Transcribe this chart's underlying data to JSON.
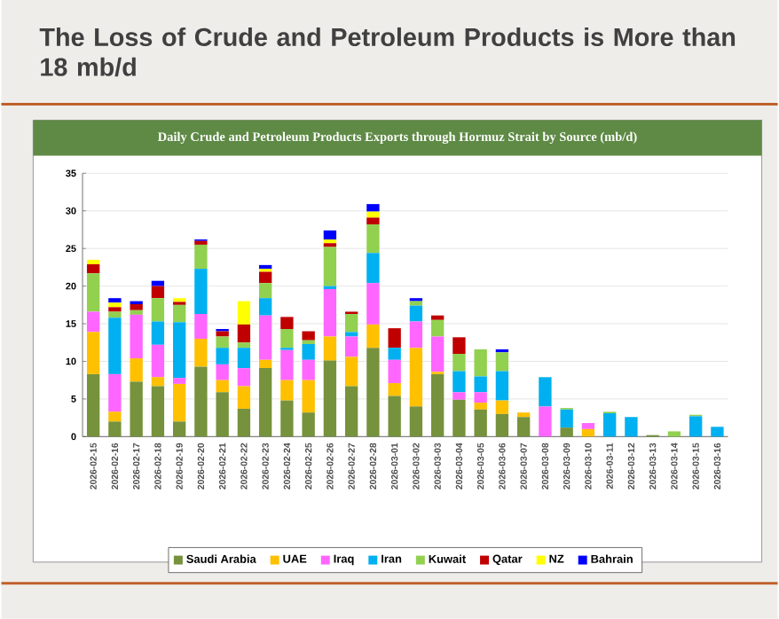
{
  "chart_data": {
    "type": "bar",
    "stacked": true,
    "title": "The Loss of Crude and Petroleum Products is More than 18 mb/d",
    "subtitle": "Daily Crude and Petroleum Products Exports through Hormuz Strait by Source (mb/d)",
    "categories": [
      "2026-02-15",
      "2026-02-16",
      "2026-02-17",
      "2026-02-18",
      "2026-02-19",
      "2026-02-20",
      "2026-02-21",
      "2026-02-22",
      "2026-02-23",
      "2026-02-24",
      "2026-02-25",
      "2026-02-26",
      "2026-02-27",
      "2026-02-28",
      "2026-03-01",
      "2026-03-02",
      "2026-03-03",
      "2026-03-04",
      "2026-03-05",
      "2026-03-06",
      "2026-03-07",
      "2026-03-08",
      "2026-03-09",
      "2026-03-10",
      "2026-03-11",
      "2026-03-12",
      "2026-03-13",
      "2026-03-14",
      "2026-03-15",
      "2026-03-16"
    ],
    "series": [
      {
        "name": "Saudi Arabia",
        "color": "#76923c",
        "values": [
          8.3,
          2.0,
          7.3,
          6.7,
          2.0,
          9.3,
          5.9,
          3.7,
          9.1,
          4.8,
          3.2,
          10.1,
          6.7,
          11.8,
          5.4,
          4.0,
          8.3,
          4.9,
          3.6,
          3.0,
          2.6,
          0,
          1.2,
          0,
          0,
          0,
          0.2,
          0,
          0,
          0
        ]
      },
      {
        "name": "UAE",
        "color": "#ffc000",
        "values": [
          5.6,
          1.3,
          3.1,
          1.2,
          5.0,
          3.7,
          1.6,
          3.0,
          1.1,
          2.7,
          4.3,
          3.2,
          3.9,
          3.1,
          1.7,
          7.8,
          0.3,
          0,
          0.9,
          1.8,
          0.6,
          0,
          0,
          1.0,
          0,
          0,
          0,
          0,
          0,
          0
        ]
      },
      {
        "name": "Iraq",
        "color": "#ff66ff",
        "values": [
          2.7,
          5.0,
          5.8,
          4.3,
          0.8,
          3.3,
          2.1,
          2.4,
          5.9,
          4.0,
          2.7,
          6.3,
          2.7,
          5.5,
          3.1,
          3.5,
          4.7,
          1.0,
          1.4,
          0,
          0,
          4.0,
          0,
          0.8,
          0,
          0,
          0,
          0,
          0,
          0
        ]
      },
      {
        "name": "Iran",
        "color": "#00b0f0",
        "values": [
          0,
          7.5,
          0,
          3.1,
          7.4,
          6.0,
          2.2,
          2.7,
          2.3,
          0.3,
          2.1,
          0.4,
          0.6,
          4.0,
          1.6,
          2.1,
          0,
          2.8,
          2.1,
          3.9,
          0,
          3.9,
          2.4,
          0,
          3.1,
          2.6,
          0,
          0,
          2.7,
          1.3
        ]
      },
      {
        "name": "Kuwait",
        "color": "#92d050",
        "values": [
          5.1,
          0.8,
          0.6,
          3.1,
          2.3,
          3.2,
          1.5,
          0.7,
          2.0,
          2.5,
          0.5,
          5.2,
          2.4,
          3.8,
          0,
          0.6,
          2.2,
          2.3,
          3.6,
          2.5,
          0,
          0,
          0.2,
          0,
          0.2,
          0,
          0,
          0.7,
          0.2,
          0
        ]
      },
      {
        "name": "Qatar",
        "color": "#c00000",
        "values": [
          1.2,
          0.6,
          0.8,
          1.6,
          0.4,
          0.5,
          0.7,
          2.4,
          1.5,
          1.6,
          1.2,
          0.5,
          0.3,
          0.9,
          2.6,
          0,
          0.6,
          2.2,
          0,
          0,
          0,
          0,
          0,
          0,
          0,
          0,
          0,
          0,
          0,
          0
        ]
      },
      {
        "name": "NZ",
        "color": "#ffff00",
        "values": [
          0.6,
          0.6,
          0,
          0,
          0.5,
          0,
          0,
          3.1,
          0.4,
          0,
          0,
          0.5,
          0,
          0.8,
          0,
          0,
          0,
          0,
          0,
          0,
          0,
          0,
          0,
          0,
          0,
          0,
          0,
          0,
          0,
          0
        ]
      },
      {
        "name": "Bahrain",
        "color": "#0000ff",
        "values": [
          0,
          0.6,
          0.4,
          0.7,
          0,
          0.2,
          0.3,
          0,
          0.5,
          0,
          0,
          1.2,
          0,
          1.0,
          0,
          0.4,
          0,
          0,
          0,
          0.4,
          0,
          0,
          0,
          0,
          0,
          0,
          0,
          0,
          0,
          0
        ]
      }
    ],
    "ylim": [
      0,
      35
    ],
    "yticks": [
      0,
      5,
      10,
      15,
      20,
      25,
      30,
      35
    ],
    "grid": "y",
    "legend": "bottom"
  }
}
